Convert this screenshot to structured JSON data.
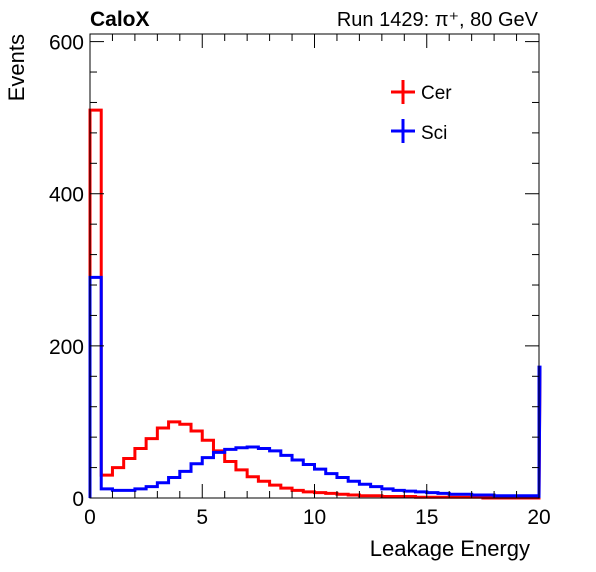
{
  "header": {
    "experiment": "CaloX",
    "run_info": "Run 1429: π⁺, 80 GeV"
  },
  "legend": [
    {
      "label": "Cer",
      "color": "#ff0000"
    },
    {
      "label": "Sci",
      "color": "#0000ff"
    }
  ],
  "chart_data": {
    "type": "line",
    "style": "step-histogram",
    "xlabel": "Leakage Energy",
    "ylabel": "Events",
    "xlim": [
      0,
      20
    ],
    "ylim": [
      0,
      610
    ],
    "x_ticks": [
      0,
      5,
      10,
      15,
      20
    ],
    "y_ticks": [
      0,
      200,
      400,
      600
    ],
    "grid": false,
    "legend_position": "top-right",
    "x": [
      0,
      0.5,
      1,
      1.5,
      2,
      2.5,
      3,
      3.5,
      4,
      4.5,
      5,
      5.5,
      6,
      6.5,
      7,
      7.5,
      8,
      8.5,
      9,
      9.5,
      10,
      10.5,
      11,
      11.5,
      12,
      12.5,
      13,
      13.5,
      14,
      14.5,
      15,
      15.5,
      16,
      16.5,
      17,
      17.5,
      18,
      18.5,
      19,
      19.5,
      20
    ],
    "series": [
      {
        "name": "Cer",
        "color": "#ff0000",
        "values": [
          510,
          30,
          40,
          52,
          65,
          78,
          92,
          100,
          97,
          88,
          76,
          62,
          48,
          37,
          28,
          22,
          17,
          13,
          10,
          8,
          7,
          6,
          5,
          4,
          3,
          3,
          2,
          2,
          2,
          1,
          1,
          1,
          1,
          1,
          1,
          0,
          0,
          0,
          0,
          0,
          170
        ]
      },
      {
        "name": "Sci",
        "color": "#0000ff",
        "values": [
          290,
          12,
          10,
          10,
          12,
          15,
          20,
          27,
          35,
          45,
          53,
          60,
          64,
          66,
          67,
          65,
          62,
          56,
          50,
          44,
          38,
          32,
          27,
          22,
          18,
          15,
          12,
          10,
          9,
          8,
          7,
          6,
          5,
          5,
          4,
          4,
          3,
          3,
          3,
          3,
          172
        ]
      }
    ]
  }
}
